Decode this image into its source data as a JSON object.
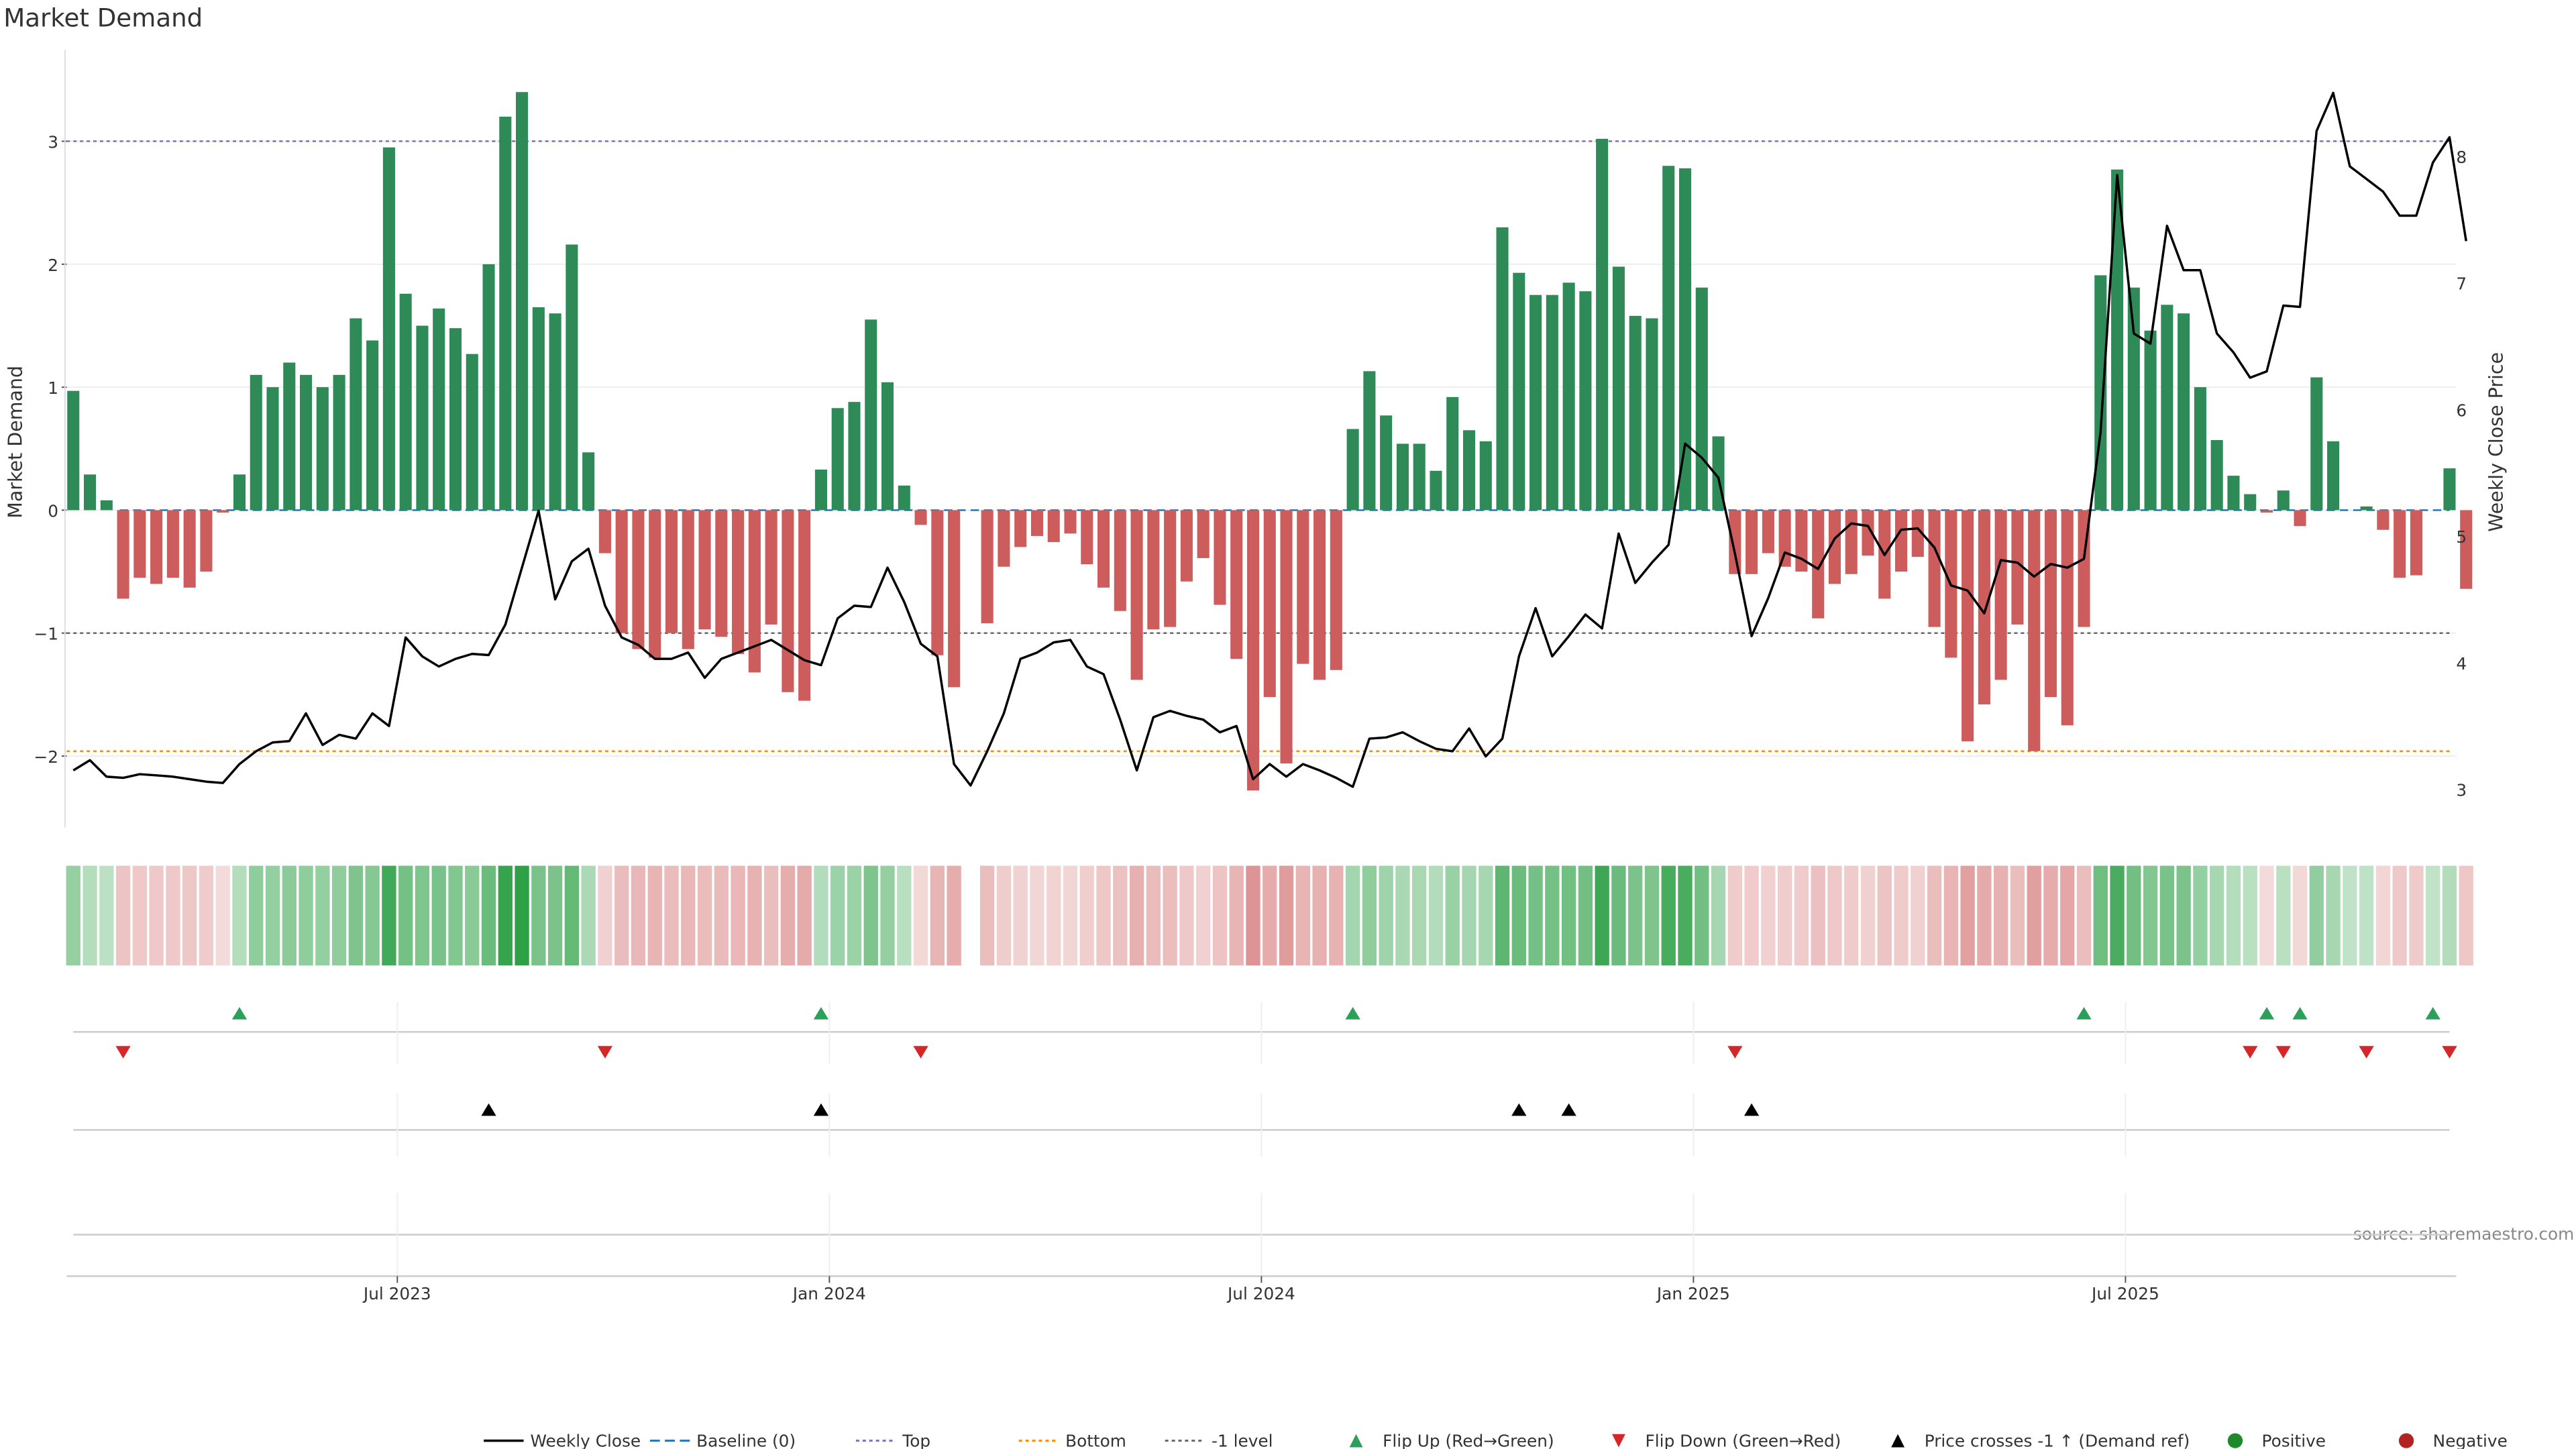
{
  "chart_data": {
    "type": "bar",
    "title": "Market Demand",
    "ylabel": "Market Demand",
    "y2label": "Weekly Close Price",
    "source": "source: sharemaestro.com",
    "ylim": [
      -2.6,
      3.7
    ],
    "y2lim": [
      2.8,
      8.9
    ],
    "yticks": [
      -2,
      -1,
      0,
      1,
      2,
      3
    ],
    "y2ticks": [
      3,
      4,
      5,
      6,
      7,
      8
    ],
    "reference_lines": {
      "top": 3.0,
      "bottom": -1.96,
      "minus_one": -1.0,
      "baseline": 0
    },
    "x_ticks": [
      {
        "label": "Jul 2023",
        "week": 22
      },
      {
        "label": "Jan 2024",
        "week": 48
      },
      {
        "label": "Jul 2024",
        "week": 74
      },
      {
        "label": "Jan 2025",
        "week": 100
      },
      {
        "label": "Jul 2025",
        "week": 126
      }
    ],
    "demand": [
      0.97,
      0.29,
      0.08,
      -0.72,
      -0.55,
      -0.6,
      -0.55,
      -0.63,
      -0.5,
      -0.02,
      0.29,
      1.1,
      1.0,
      1.2,
      1.1,
      1.0,
      1.1,
      1.56,
      1.38,
      2.95,
      1.76,
      1.5,
      1.64,
      1.48,
      1.27,
      2.0,
      3.2,
      3.4,
      1.65,
      1.6,
      2.16,
      0.47,
      -0.35,
      -1.0,
      -1.13,
      -1.2,
      -1.0,
      -1.13,
      -0.97,
      -1.03,
      -1.17,
      -1.32,
      -0.93,
      -1.48,
      -1.55,
      0.33,
      0.83,
      0.88,
      1.55,
      1.04,
      0.2,
      -0.12,
      -1.18,
      -1.44,
      0,
      -0.92,
      -0.46,
      -0.3,
      -0.21,
      -0.26,
      -0.19,
      -0.44,
      -0.63,
      -0.82,
      -1.38,
      -0.97,
      -0.95,
      -0.58,
      -0.39,
      -0.77,
      -1.21,
      -2.28,
      -1.52,
      -2.06,
      -1.25,
      -1.38,
      -1.3,
      0.66,
      1.13,
      0.77,
      0.54,
      0.54,
      0.32,
      0.92,
      0.65,
      0.56,
      2.3,
      1.93,
      1.75,
      1.75,
      1.85,
      1.78,
      3.02,
      1.98,
      1.58,
      1.56,
      2.8,
      2.78,
      1.81,
      0.6,
      -0.52,
      -0.52,
      -0.35,
      -0.46,
      -0.5,
      -0.88,
      -0.6,
      -0.52,
      -0.37,
      -0.72,
      -0.5,
      -0.38,
      -0.95,
      -1.2,
      -1.88,
      -1.58,
      -1.38,
      -0.93,
      -1.96,
      -1.52,
      -1.75,
      -0.95,
      1.91,
      2.77,
      1.81,
      1.46,
      1.67,
      1.6,
      1.0,
      0.57,
      0.28,
      0.13,
      -0.02,
      0.16,
      -0.13,
      1.08,
      0.56,
      0,
      0.03,
      -0.16,
      -0.55,
      -0.53,
      0,
      0.34,
      -0.64
    ],
    "price": [
      3.15,
      3.23,
      3.1,
      3.09,
      3.12,
      3.11,
      3.1,
      3.08,
      3.06,
      3.05,
      3.2,
      3.3,
      3.37,
      3.38,
      3.6,
      3.35,
      3.43,
      3.4,
      3.6,
      3.5,
      4.2,
      4.05,
      3.97,
      4.03,
      4.07,
      4.06,
      4.3,
      4.75,
      5.2,
      4.5,
      4.8,
      4.9,
      4.45,
      4.2,
      4.14,
      4.03,
      4.03,
      4.08,
      3.88,
      4.03,
      4.08,
      4.13,
      4.18,
      4.1,
      4.02,
      3.98,
      4.35,
      4.45,
      4.44,
      4.75,
      4.48,
      4.15,
      4.05,
      3.2,
      3.03,
      3.3,
      3.6,
      4.03,
      4.08,
      4.16,
      4.18,
      3.97,
      3.91,
      3.55,
      3.15,
      3.57,
      3.62,
      3.58,
      3.55,
      3.45,
      3.5,
      3.08,
      3.2,
      3.1,
      3.2,
      3.15,
      3.09,
      3.02,
      3.4,
      3.41,
      3.45,
      3.38,
      3.32,
      3.3,
      3.48,
      3.26,
      3.4,
      4.05,
      4.43,
      4.05,
      4.21,
      4.38,
      4.27,
      5.02,
      4.63,
      4.79,
      4.93,
      5.73,
      5.62,
      5.46,
      4.86,
      4.21,
      4.51,
      4.87,
      4.82,
      4.74,
      4.98,
      5.1,
      5.08,
      4.85,
      5.05,
      5.06,
      4.91,
      4.61,
      4.57,
      4.39,
      4.81,
      4.79,
      4.68,
      4.78,
      4.75,
      4.82,
      5.82,
      7.85,
      6.6,
      6.52,
      7.45,
      7.1,
      7.1,
      6.6,
      6.45,
      6.25,
      6.3,
      6.82,
      6.81,
      8.2,
      8.5,
      7.92,
      7.82,
      7.72,
      7.53,
      7.53,
      7.95,
      8.15,
      7.33
    ],
    "heat_strip": "weekly market-demand intensity (green = positive, red = negative)",
    "flip_up_weeks": [
      10,
      45,
      77,
      121,
      132,
      134,
      142
    ],
    "flip_down_weeks": [
      3,
      32,
      51,
      100,
      131,
      133,
      138,
      143
    ],
    "price_cross_weeks": [
      25,
      45,
      87,
      90,
      101
    ],
    "legend": [
      {
        "label": "Weekly Close",
        "kind": "line",
        "color": "#000000"
      },
      {
        "label": "Baseline (0)",
        "kind": "dash",
        "color": "#1f77b4"
      },
      {
        "label": "Top",
        "kind": "dot",
        "color": "#7e6fb8"
      },
      {
        "label": "Bottom",
        "kind": "dot",
        "color": "#ff8c00"
      },
      {
        "label": "-1 level",
        "kind": "dot",
        "color": "#666666"
      },
      {
        "label": "Flip Up (Red→Green)",
        "kind": "tri-up",
        "color": "#2ca05a"
      },
      {
        "label": "Flip Down (Green→Red)",
        "kind": "tri-down",
        "color": "#d62728"
      },
      {
        "label": "Price crosses -1 ↑ (Demand ref)",
        "kind": "tri-up",
        "color": "#000000"
      },
      {
        "label": "Positive",
        "kind": "circle",
        "color": "#1f8a2a"
      },
      {
        "label": "Negative",
        "kind": "circle",
        "color": "#b22222"
      }
    ],
    "colors": {
      "positive": "#2e8b57",
      "negative": "#cd5c5c",
      "flip_up": "#2ca05a",
      "flip_down": "#d62728"
    }
  }
}
